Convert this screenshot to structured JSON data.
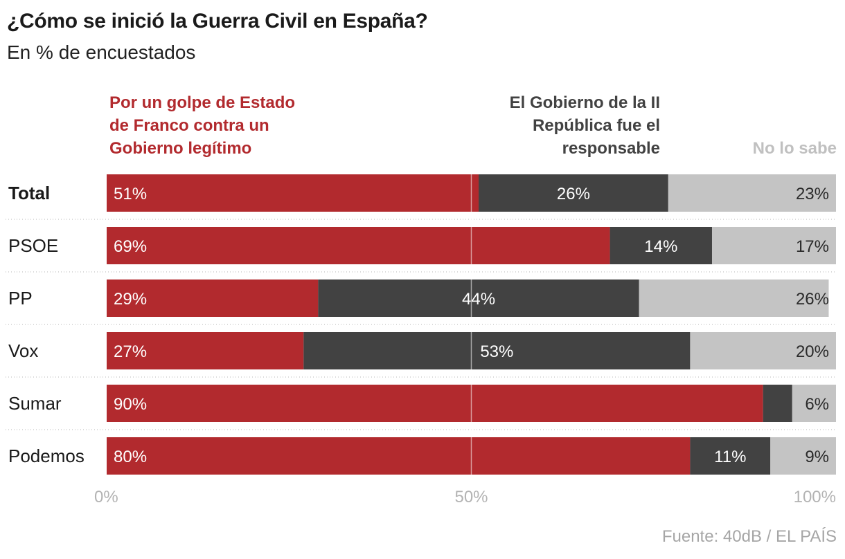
{
  "header": {
    "title": "¿Cómo se inició la Guerra Civil en España?",
    "subtitle": "En % de encuestados"
  },
  "source": "Fuente: 40dB / EL PAÍS",
  "colors": {
    "golpe": "#b22a2e",
    "gobierno": "#424242",
    "nosabe": "#c4c4c4",
    "legend_nosabe_text": "#c0c0c0"
  },
  "chart_data": {
    "type": "bar",
    "orientation": "horizontal",
    "stacked": true,
    "title": "¿Cómo se inició la Guerra Civil en España?",
    "subtitle": "En % de encuestados",
    "categories": [
      "Total",
      "PSOE",
      "PP",
      "Vox",
      "Sumar",
      "Podemos"
    ],
    "series": [
      {
        "name": "Por un golpe de Estado de Franco contra un Gobierno legítimo",
        "legend": "Por un golpe de Estado\nde Franco contra un\nGobierno legítimo",
        "values": [
          51,
          69,
          29,
          27,
          90,
          80
        ],
        "labels": [
          "51%",
          "69%",
          "29%",
          "27%",
          "90%",
          "80%"
        ]
      },
      {
        "name": "El Gobierno de la II República fue el responsable",
        "legend": "El Gobierno de la II\nRepública fue el\nresponsable",
        "values": [
          26,
          14,
          44,
          53,
          4,
          11
        ],
        "labels": [
          "26%",
          "14%",
          "44%",
          "53%",
          "",
          "11%"
        ]
      },
      {
        "name": "No lo sabe",
        "legend": "No lo sabe",
        "values": [
          23,
          17,
          26,
          20,
          6,
          9
        ],
        "labels": [
          "23%",
          "17%",
          "26%",
          "20%",
          "6%",
          "9%"
        ]
      }
    ],
    "xlim": [
      0,
      100
    ],
    "xticks": [
      "0%",
      "50%",
      "100%"
    ],
    "reference_line": 50
  }
}
